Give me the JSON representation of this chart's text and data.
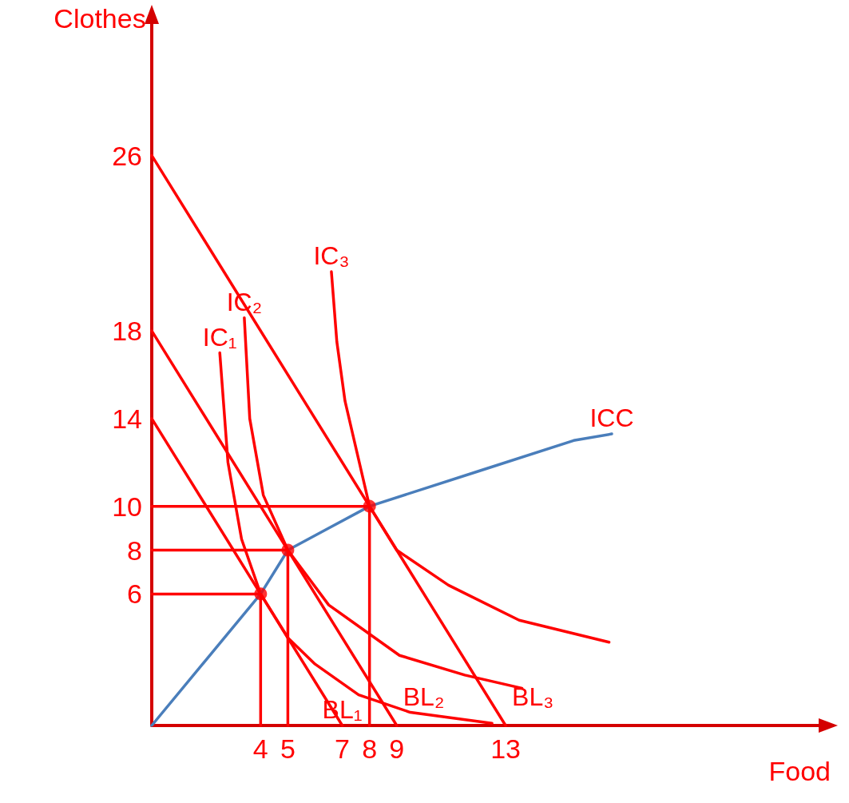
{
  "chart_data": {
    "type": "line",
    "xlabel": "Food",
    "ylabel": "Clothes",
    "xlim": [
      0,
      24.5
    ],
    "ylim": [
      0,
      32
    ],
    "xticks": [
      4,
      5,
      7,
      8,
      9,
      13
    ],
    "yticks": [
      6,
      8,
      10,
      14,
      18,
      26
    ],
    "grid": false,
    "marker": "none",
    "line_style": "solid",
    "series": [
      {
        "color": "#ff0000",
        "x": [
          0,
          7
        ],
        "values": [
          14,
          0
        ]
      },
      {
        "color": "#ff0000",
        "x": [
          0,
          9
        ],
        "values": [
          18,
          0
        ]
      },
      {
        "color": "#ff0000",
        "x": [
          0,
          13
        ],
        "values": [
          26,
          0
        ]
      },
      {
        "color": "#ff0000",
        "x": [
          2.5,
          2.8,
          3.3,
          4,
          5,
          6,
          7.6,
          9.5,
          12.5
        ],
        "values": [
          17,
          12,
          8.5,
          6,
          4,
          2.8,
          1.4,
          0.6,
          0.1
        ]
      },
      {
        "color": "#ff0000",
        "x": [
          3.4,
          3.6,
          4.1,
          5,
          6.5,
          9.1,
          11.5,
          13.6
        ],
        "values": [
          18.6,
          14,
          10.5,
          8,
          5.5,
          3.2,
          2.3,
          1.7
        ]
      },
      {
        "color": "#ff0000",
        "x": [
          6.6,
          6.8,
          7.1,
          8,
          9,
          10.9,
          13.5,
          16.8
        ],
        "values": [
          20.7,
          17.5,
          14.8,
          10,
          8,
          6.4,
          4.8,
          3.8
        ]
      },
      {
        "color": "#4a7ebb",
        "x": [
          0,
          4,
          4.8,
          5,
          6.5,
          8,
          12,
          15.5,
          16.9
        ],
        "values": [
          0,
          6,
          7.6,
          8,
          9,
          10,
          11.6,
          13,
          13.3
        ]
      },
      {
        "color": "#ff0000",
        "x": [
          0,
          4,
          4
        ],
        "values": [
          6,
          6,
          0
        ]
      },
      {
        "color": "#ff0000",
        "x": [
          0,
          5,
          5
        ],
        "values": [
          8,
          8,
          0
        ]
      },
      {
        "color": "#ff0000",
        "x": [
          0,
          8,
          8
        ],
        "values": [
          10,
          10,
          0
        ]
      },
      {
        "type": "scatter",
        "marker": "circle",
        "color": "#ff0000",
        "x": [
          4,
          5,
          8
        ],
        "values": [
          6,
          8,
          10
        ]
      }
    ],
    "annotations": [
      {
        "text": "IC₁",
        "x": 2.5,
        "y": 17
      },
      {
        "text": "IC₂",
        "x": 3.4,
        "y": 18.6
      },
      {
        "text": "IC₃",
        "x": 6.6,
        "y": 20.7
      },
      {
        "text": "BL₁",
        "x": 7,
        "y": 0
      },
      {
        "text": "BL₂",
        "x": 9,
        "y": 0
      },
      {
        "text": "BL₃",
        "x": 13,
        "y": 0
      },
      {
        "text": "ICC",
        "x": 16.9,
        "y": 13.3
      }
    ]
  }
}
